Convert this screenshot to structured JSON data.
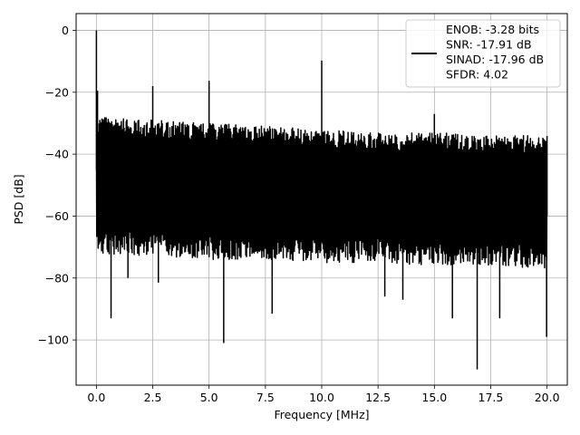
{
  "chart_data": {
    "type": "line",
    "xlabel": "Frequency [MHz]",
    "ylabel": "PSD [dB]",
    "xlim": [
      -0.9,
      20.9
    ],
    "ylim": [
      -114.6,
      5.4
    ],
    "xticks": [
      0,
      2.5,
      5,
      7.5,
      10,
      12.5,
      15,
      17.5,
      20
    ],
    "xtick_labels": [
      "0.0",
      "2.5",
      "5.0",
      "7.5",
      "10.0",
      "12.5",
      "15.0",
      "17.5",
      "20.0"
    ],
    "yticks": [
      0,
      -20,
      -40,
      -60,
      -80,
      -100
    ],
    "ytick_labels": [
      "0",
      "−20",
      "−40",
      "−60",
      "−80",
      "−100"
    ],
    "grid": true,
    "legend_position": "upper-right",
    "series": [
      {
        "color": "#000000",
        "noise_floor": {
          "x": [
            0,
            2.5,
            5,
            7.5,
            10,
            12.5,
            15,
            17.5,
            20
          ],
          "upper": [
            -26,
            -27,
            -28,
            -29,
            -30,
            -31,
            -31,
            -32,
            -32
          ],
          "lower": [
            -72,
            -73,
            -74,
            -74,
            -75,
            -75,
            -76,
            -76,
            -77
          ]
        },
        "spurs": [
          {
            "x": 0.0,
            "y": 0.0
          },
          {
            "x": 0.05,
            "y": -19.5
          },
          {
            "x": 2.5,
            "y": -18.0
          },
          {
            "x": 5.0,
            "y": -16.3
          },
          {
            "x": 10.0,
            "y": -9.8
          },
          {
            "x": 15.0,
            "y": -27.0
          }
        ],
        "dips": [
          {
            "x": 0.65,
            "y": -93.0
          },
          {
            "x": 5.65,
            "y": -101.0
          },
          {
            "x": 7.8,
            "y": -91.5
          },
          {
            "x": 15.8,
            "y": -93.0
          },
          {
            "x": 16.9,
            "y": -109.5
          },
          {
            "x": 17.9,
            "y": -93.0
          },
          {
            "x": 19.98,
            "y": -99.0
          },
          {
            "x": 1.4,
            "y": -80.0
          },
          {
            "x": 2.75,
            "y": -81.5
          },
          {
            "x": 12.8,
            "y": -86.0
          },
          {
            "x": 13.6,
            "y": -87.0
          }
        ]
      }
    ],
    "legend": {
      "lines": [
        "ENOB: -3.28 bits",
        "SNR: -17.91 dB",
        "SINAD: -17.96 dB",
        "SFDR: 4.02"
      ]
    }
  }
}
